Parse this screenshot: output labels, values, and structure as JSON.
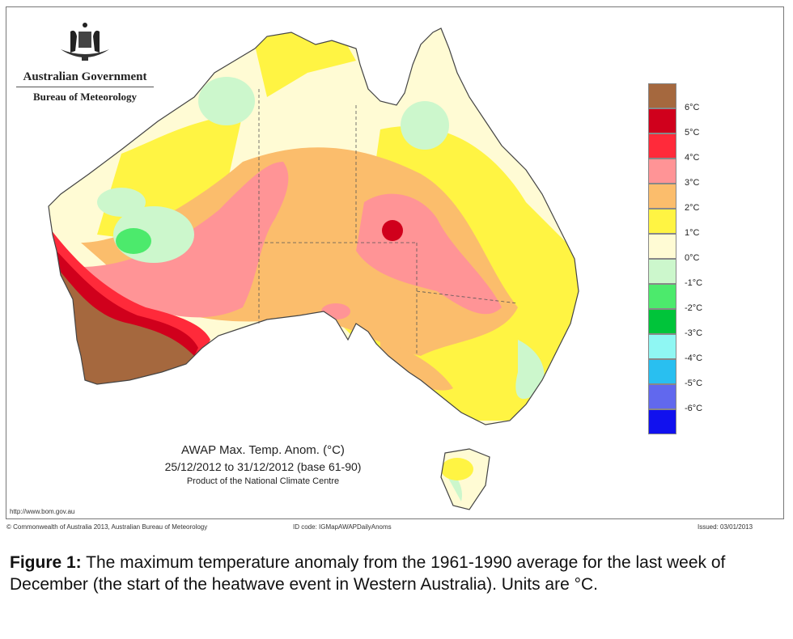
{
  "logo": {
    "line1": "Australian Government",
    "line2": "Bureau of Meteorology"
  },
  "map_title": {
    "title": "AWAP Max. Temp. Anom. (°C)",
    "period": "25/12/2012 to 31/12/2012 (base 61-90)",
    "product": "Product of the National Climate Centre"
  },
  "footer": {
    "url": "http://www.bom.gov.au",
    "copyright": "© Commonwealth of Australia 2013, Australian Bureau of Meteorology",
    "id_code": "ID code: IGMapAWAPDailyAnoms",
    "issued": "Issued: 03/01/2013"
  },
  "legend": {
    "colors": [
      "#a5683e",
      "#d0001c",
      "#ff2a3a",
      "#ff9496",
      "#fbbd6c",
      "#fff443",
      "#fffbd4",
      "#ccf7cc",
      "#4cea6c",
      "#00c43a",
      "#8ff7f3",
      "#29bff0",
      "#6168ee",
      "#1111ee"
    ],
    "labels": [
      "6°C",
      "5°C",
      "4°C",
      "3°C",
      "2°C",
      "1°C",
      "0°C",
      "-1°C",
      "-2°C",
      "-3°C",
      "-4°C",
      "-5°C",
      "-6°C"
    ]
  },
  "caption": {
    "label": "Figure 1:",
    "text": " The maximum temperature anomaly from the 1961-1990 average for the last week of December (the start of the heatwave event in Western Australia). Units are °C."
  }
}
